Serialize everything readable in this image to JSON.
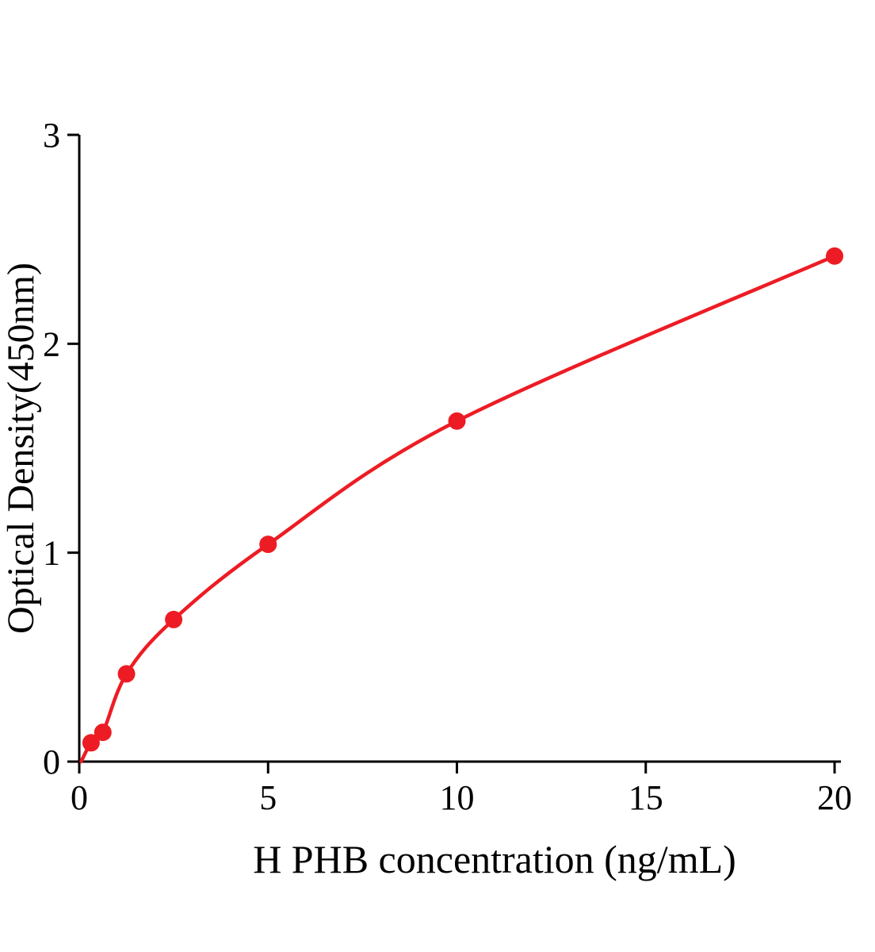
{
  "chart_data": {
    "type": "scatter",
    "subtype": "standard-curve-with-fitted-line",
    "title": "",
    "xlabel": "H PHB concentration (ng/mL)",
    "ylabel": "Optical Density(450nm)",
    "x": [
      0.3125,
      0.625,
      1.25,
      2.5,
      5,
      10,
      20
    ],
    "y": [
      0.09,
      0.14,
      0.42,
      0.68,
      1.04,
      1.63,
      2.42
    ],
    "curve_start": {
      "x": 0.05,
      "y": 0.0
    },
    "xlim": [
      0,
      20
    ],
    "ylim": [
      0,
      3
    ],
    "xticks": [
      0,
      5,
      10,
      15,
      20
    ],
    "yticks": [
      0,
      1,
      2,
      3
    ],
    "grid": false,
    "legend": "none",
    "marker": "circle",
    "marker_color": "#ed1c24",
    "line_color": "#ed1c24",
    "axis_color": "#000000",
    "background_color": "#ffffff"
  }
}
